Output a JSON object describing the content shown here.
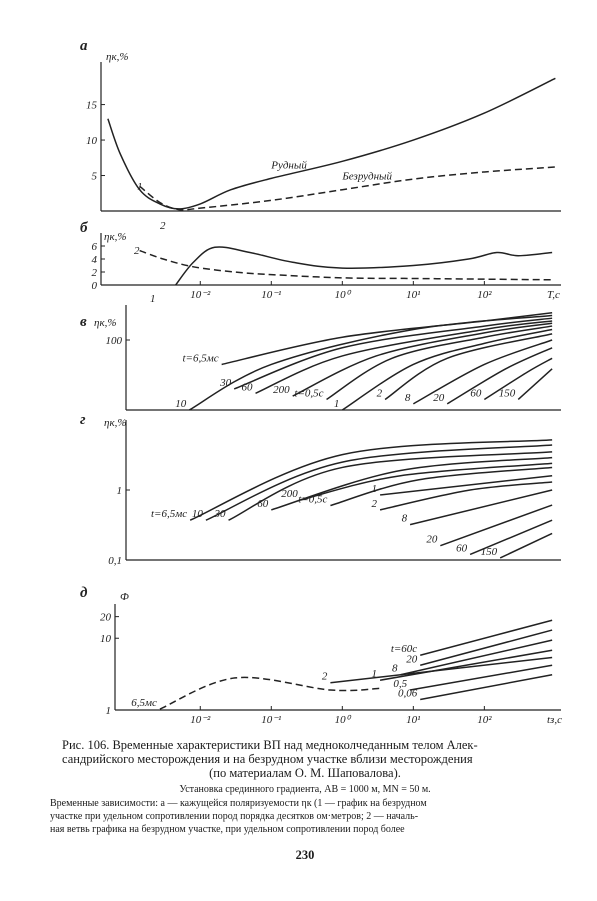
{
  "chart_data": [
    {
      "type": "line",
      "title": "а",
      "ylabel": "ηк,%",
      "xscale": "log",
      "yscale": "linear",
      "xlim": [
        0.0004,
        1200
      ],
      "ylim": [
        0,
        21
      ],
      "yticks": [
        5,
        10,
        15
      ],
      "annotations": [
        "1",
        "2"
      ],
      "series": [
        {
          "name": "Рудный",
          "color": "#222",
          "style": "solid",
          "x": [
            0.0005,
            0.00075,
            0.0014,
            0.0027,
            0.005,
            0.01,
            0.027,
            0.1,
            1,
            10,
            100,
            1000
          ],
          "values": [
            13,
            8,
            3,
            1,
            0.3,
            1,
            3,
            4.6,
            7,
            10,
            13.8,
            18.7
          ]
        },
        {
          "name": "Безрудный",
          "color": "#222",
          "style": "dashed",
          "x": [
            0.0014,
            0.0027,
            0.005,
            0.01,
            0.1,
            1,
            10,
            100,
            1000
          ],
          "values": [
            3.5,
            1.2,
            0.2,
            0.4,
            1.5,
            3,
            4.5,
            5.5,
            6.2
          ]
        }
      ]
    },
    {
      "type": "line",
      "title": "б",
      "ylabel": "ηк,%",
      "xlabel": "T,c",
      "xscale": "log",
      "yscale": "linear",
      "xlim": [
        0.0004,
        1200
      ],
      "ylim": [
        0,
        8
      ],
      "yticks": [
        0,
        2,
        4,
        6
      ],
      "xticks": [
        {
          "value": 0.01,
          "label": "10⁻²"
        },
        {
          "value": 0.1,
          "label": "10⁻¹"
        },
        {
          "value": 1,
          "label": "10⁰"
        },
        {
          "value": 10,
          "label": "10¹"
        },
        {
          "value": 100,
          "label": "10²"
        }
      ],
      "annotations": [
        "1",
        "2"
      ],
      "series": [
        {
          "color": "#222",
          "style": "solid",
          "x": [
            0.0045,
            0.008,
            0.016,
            0.05,
            0.2,
            1,
            10,
            60,
            150,
            300,
            900
          ],
          "values": [
            0,
            3.5,
            5.8,
            5,
            3.5,
            2.6,
            3,
            4,
            5,
            4.5,
            5
          ]
        },
        {
          "color": "#222",
          "style": "dashed",
          "x": [
            0.0014,
            0.003,
            0.008,
            0.03,
            0.1,
            1,
            10,
            100,
            900
          ],
          "values": [
            5.3,
            4,
            2.8,
            2,
            1.6,
            1.1,
            1,
            0.9,
            0.8
          ]
        }
      ]
    },
    {
      "type": "line",
      "title": "в",
      "ylabel": "ηк,%",
      "xscale": "log",
      "yscale": "log",
      "xlim": [
        0.0009,
        1200
      ],
      "ylim": [
        1,
        1000
      ],
      "yticks": [
        100
      ],
      "series": [
        {
          "name": "t=6,5мс",
          "color": "#222",
          "style": "solid",
          "x": [
            0.02,
            1,
            100,
            900
          ],
          "values": [
            20,
            120,
            350,
            600
          ]
        },
        {
          "name": "10",
          "color": "#222",
          "style": "solid",
          "x": [
            0.007,
            0.1,
            10,
            900
          ],
          "values": [
            1,
            20,
            200,
            500
          ]
        },
        {
          "name": "30",
          "color": "#222",
          "style": "solid",
          "x": [
            0.03,
            1,
            100,
            900
          ],
          "values": [
            4,
            60,
            250,
            420
          ]
        },
        {
          "name": "60",
          "color": "#222",
          "style": "solid",
          "x": [
            0.06,
            1,
            100,
            900
          ],
          "values": [
            3,
            35,
            200,
            350
          ]
        },
        {
          "name": "200",
          "color": "#222",
          "style": "solid",
          "x": [
            0.2,
            3,
            100,
            900
          ],
          "values": [
            2.5,
            35,
            160,
            300
          ]
        },
        {
          "name": "t=0,5с",
          "color": "#222",
          "style": "solid",
          "x": [
            0.6,
            5,
            100,
            900
          ],
          "values": [
            2,
            30,
            120,
            250
          ]
        },
        {
          "name": "1",
          "color": "#222",
          "style": "solid",
          "x": [
            1,
            10,
            100,
            900
          ],
          "values": [
            1,
            20,
            80,
            200
          ]
        },
        {
          "name": "2",
          "color": "#222",
          "style": "solid",
          "x": [
            4,
            30,
            900
          ],
          "values": [
            2,
            30,
            150
          ]
        },
        {
          "name": "8",
          "color": "#222",
          "style": "solid",
          "x": [
            10,
            100,
            900
          ],
          "values": [
            1.5,
            20,
            100
          ]
        },
        {
          "name": "20",
          "color": "#222",
          "style": "solid",
          "x": [
            30,
            200,
            900
          ],
          "values": [
            1.5,
            15,
            60
          ]
        },
        {
          "name": "60",
          "color": "#222",
          "style": "solid",
          "x": [
            100,
            400,
            900
          ],
          "values": [
            2,
            12,
            30
          ]
        },
        {
          "name": "150",
          "color": "#222",
          "style": "solid",
          "x": [
            300,
            900
          ],
          "values": [
            2,
            15
          ]
        }
      ]
    },
    {
      "type": "line",
      "title": "г",
      "ylabel": "ηк,%",
      "xscale": "log",
      "yscale": "log",
      "xlim": [
        0.0009,
        1200
      ],
      "ylim": [
        0.1,
        10
      ],
      "yticks": [
        {
          "value": 0.1,
          "label": "0,1"
        },
        1
      ],
      "series": [
        {
          "name": "t=6,5мс",
          "color": "#222",
          "style": "solid",
          "x": [
            0.0072,
            1,
            900
          ],
          "values": [
            0.37,
            3.2,
            5.2
          ]
        },
        {
          "name": "10",
          "color": "#222",
          "style": "solid",
          "x": [
            0.012,
            1,
            900
          ],
          "values": [
            0.37,
            2.5,
            4.4
          ]
        },
        {
          "name": "30",
          "color": "#222",
          "style": "solid",
          "x": [
            0.025,
            1,
            900
          ],
          "values": [
            0.37,
            2.1,
            3.5
          ]
        },
        {
          "name": "60",
          "color": "#222",
          "style": "solid",
          "x": [
            0.1,
            6.6,
            900
          ],
          "values": [
            0.52,
            1.9,
            2.9
          ]
        },
        {
          "name": "200",
          "color": "#222",
          "style": "solid",
          "x": [
            0.26,
            6.6,
            900
          ],
          "values": [
            0.72,
            1.6,
            2.4
          ]
        },
        {
          "name": "t=0,5с",
          "color": "#222",
          "style": "solid",
          "x": [
            0.68,
            12,
            900
          ],
          "values": [
            0.6,
            1.4,
            2.1
          ]
        },
        {
          "name": "1",
          "color": "#222",
          "style": "solid",
          "x": [
            3.4,
            900
          ],
          "values": [
            0.85,
            1.6
          ]
        },
        {
          "name": "2",
          "color": "#222",
          "style": "solid",
          "x": [
            3.4,
            63,
            900
          ],
          "values": [
            0.52,
            1,
            1.3
          ]
        },
        {
          "name": "8",
          "color": "#222",
          "style": "solid",
          "x": [
            9,
            900
          ],
          "values": [
            0.32,
            1
          ]
        },
        {
          "name": "20",
          "color": "#222",
          "style": "solid",
          "x": [
            24,
            900
          ],
          "values": [
            0.16,
            0.61
          ]
        },
        {
          "name": "60",
          "color": "#222",
          "style": "solid",
          "x": [
            63,
            900
          ],
          "values": [
            0.12,
            0.37
          ]
        },
        {
          "name": "150",
          "color": "#222",
          "style": "solid",
          "x": [
            167,
            900
          ],
          "values": [
            0.107,
            0.24
          ]
        }
      ]
    },
    {
      "type": "line",
      "title": "д",
      "ylabel": "Ф",
      "xlabel": "tз,с",
      "xscale": "log",
      "yscale": "log",
      "xlim": [
        0.00063,
        1200
      ],
      "ylim": [
        1,
        30
      ],
      "yticks": [
        1,
        10,
        20
      ],
      "xticks": [
        {
          "value": 0.01,
          "label": "10⁻²"
        },
        {
          "value": 0.1,
          "label": "10⁻¹"
        },
        {
          "value": 1,
          "label": "10⁰"
        },
        {
          "value": 10,
          "label": "10¹"
        },
        {
          "value": 100,
          "label": "10²"
        }
      ],
      "series": [
        {
          "name": "6,5мс",
          "color": "#222",
          "style": "dashed",
          "x": [
            0.0027,
            0.031,
            0.68,
            3.4
          ],
          "values": [
            1.03,
            2.8,
            1.9,
            2
          ]
        },
        {
          "name": "t=60с",
          "color": "#222",
          "style": "solid",
          "x": [
            12.5,
            900
          ],
          "values": [
            5.8,
            17.8
          ]
        },
        {
          "name": "20",
          "color": "#222",
          "style": "solid",
          "x": [
            12.5,
            900
          ],
          "values": [
            4.2,
            13
          ]
        },
        {
          "name": "8",
          "color": "#222",
          "style": "solid",
          "x": [
            6.6,
            900
          ],
          "values": [
            3.1,
            9.4
          ]
        },
        {
          "name": "1",
          "color": "#222",
          "style": "solid",
          "x": [
            3.4,
            900
          ],
          "values": [
            2.6,
            6.8
          ]
        },
        {
          "name": "2",
          "color": "#222",
          "style": "solid",
          "x": [
            0.68,
            900
          ],
          "values": [
            2.4,
            5.4
          ]
        },
        {
          "name": "0,5",
          "color": "#222",
          "style": "solid",
          "x": [
            9,
            900
          ],
          "values": [
            1.9,
            4.2
          ]
        },
        {
          "name": "0,06",
          "color": "#222",
          "style": "solid",
          "x": [
            12.5,
            900
          ],
          "values": [
            1.4,
            3.1
          ]
        }
      ]
    }
  ],
  "caption": {
    "lines": [
      "Рис. 106. Временные характеристики ВП над  медноколчеданным телом Алек-",
      "сандрийского месторождения и на безрудном участке вблизи месторождения",
      "(по материалам О. М. Шаповалова).",
      "Установка срединного градиента, AB = 1000 м, MN = 50 м.",
      "Временные зависимости: а — кажущейся поляризуемости ηк (1 — график на безрудном",
      "участке при удельном сопротивлении пород порядка десятков ом·метров; 2 — началь-",
      "ная ветвь графика на безрудном участке, при удельном сопротивлении пород более"
    ]
  },
  "page_number": "230"
}
